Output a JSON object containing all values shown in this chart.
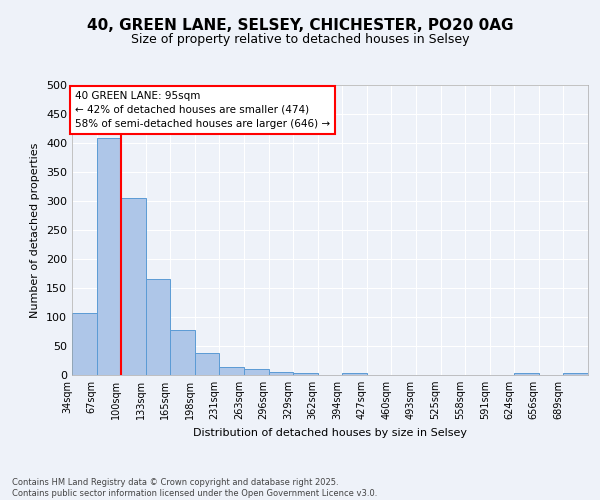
{
  "title_line1": "40, GREEN LANE, SELSEY, CHICHESTER, PO20 0AG",
  "title_line2": "Size of property relative to detached houses in Selsey",
  "xlabel": "Distribution of detached houses by size in Selsey",
  "ylabel": "Number of detached properties",
  "bar_values": [
    107,
    408,
    305,
    166,
    77,
    38,
    13,
    10,
    6,
    3,
    0,
    3,
    0,
    0,
    0,
    0,
    0,
    0,
    3,
    0,
    3
  ],
  "categories": [
    "34sqm",
    "67sqm",
    "100sqm",
    "133sqm",
    "165sqm",
    "198sqm",
    "231sqm",
    "263sqm",
    "296sqm",
    "329sqm",
    "362sqm",
    "394sqm",
    "427sqm",
    "460sqm",
    "493sqm",
    "525sqm",
    "558sqm",
    "591sqm",
    "624sqm",
    "656sqm",
    "689sqm"
  ],
  "bar_color": "#aec6e8",
  "bar_edgecolor": "#5b9bd5",
  "vline_x": 2,
  "vline_color": "red",
  "annotation_text": "40 GREEN LANE: 95sqm\n← 42% of detached houses are smaller (474)\n58% of semi-detached houses are larger (646) →",
  "annotation_box_color": "white",
  "annotation_box_edgecolor": "red",
  "ylim": [
    0,
    500
  ],
  "yticks": [
    0,
    50,
    100,
    150,
    200,
    250,
    300,
    350,
    400,
    450,
    500
  ],
  "footer_text": "Contains HM Land Registry data © Crown copyright and database right 2025.\nContains public sector information licensed under the Open Government Licence v3.0.",
  "bg_color": "#eef2f9",
  "plot_bg_color": "#eef2f9"
}
